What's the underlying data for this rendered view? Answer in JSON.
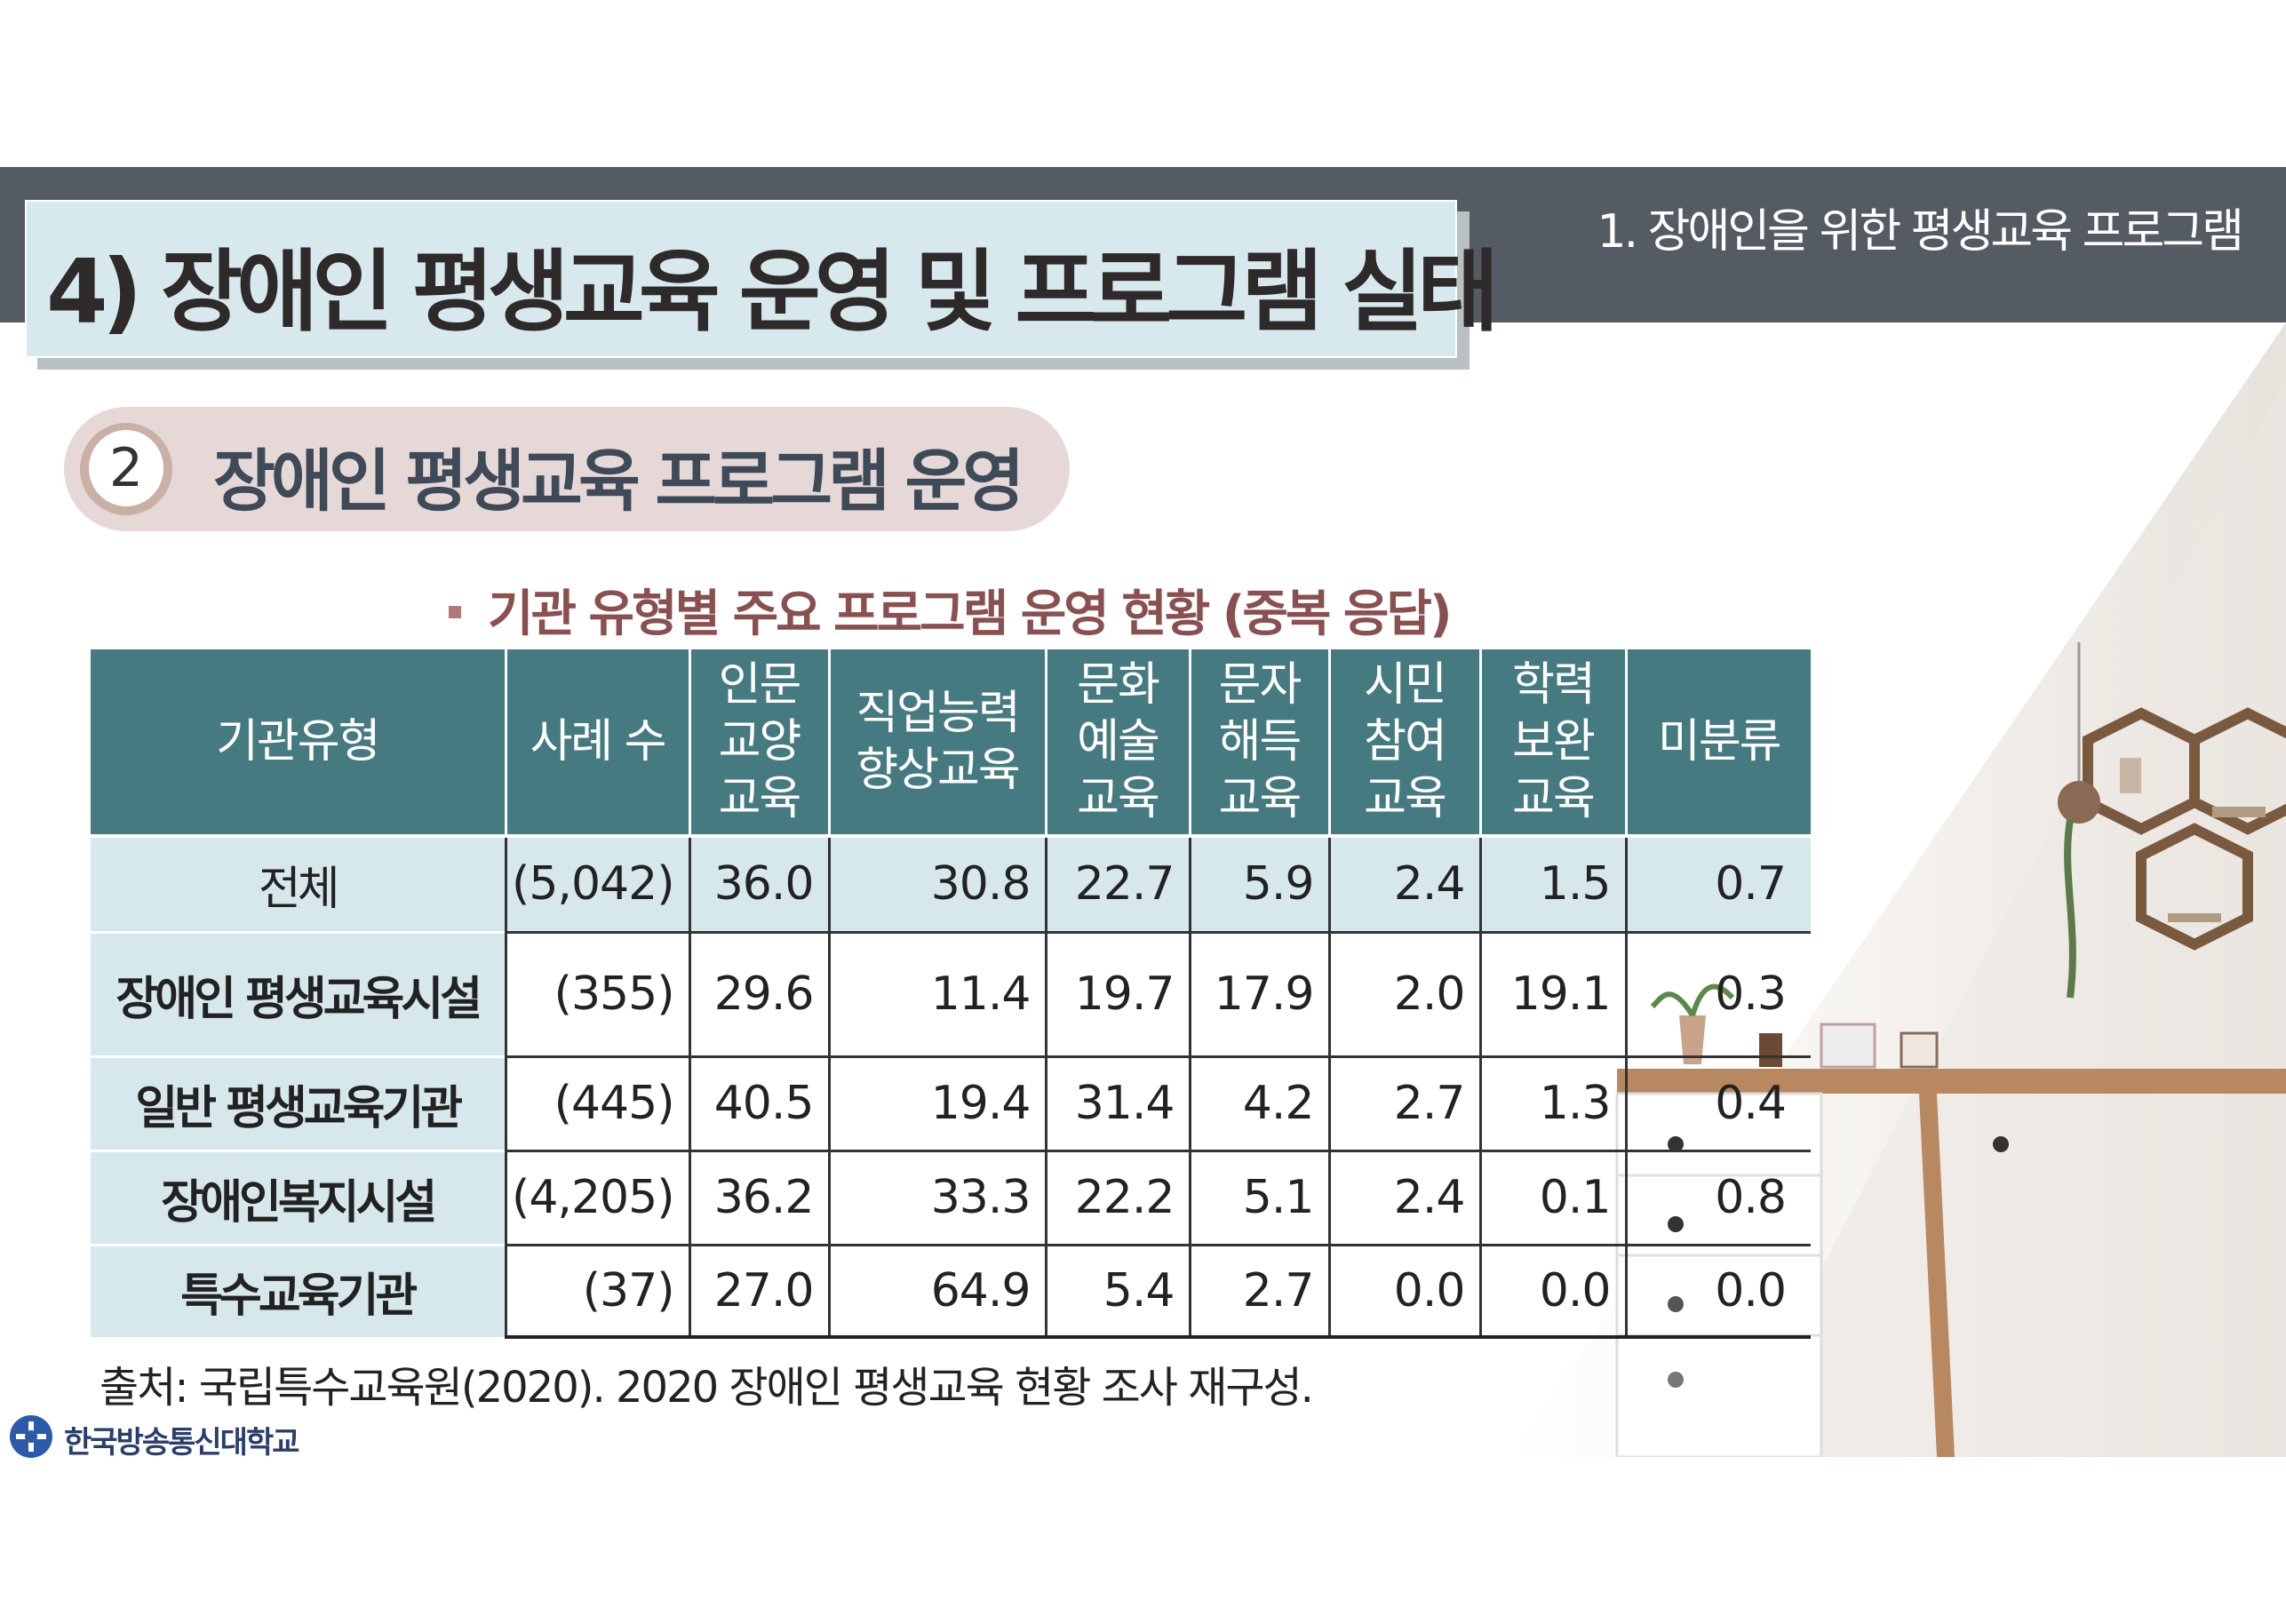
{
  "header": {
    "section_label": "1. 장애인을 위한 평생교육 프로그램",
    "title": "4) 장애인 평생교육 운영 및 프로그램 실태"
  },
  "subheading": {
    "number": "2",
    "text": "장애인 평생교육 프로그램 운영"
  },
  "table_caption": "기관 유형별 주요 프로그램 운영 현황 (중복 응답)",
  "table": {
    "headers": [
      [
        "기관유형"
      ],
      [
        "사례 수"
      ],
      [
        "인문",
        "교양",
        "교육"
      ],
      [
        "직업능력",
        "향상교육"
      ],
      [
        "문화",
        "예술",
        "교육"
      ],
      [
        "문자",
        "해득",
        "교육"
      ],
      [
        "시민",
        "참여",
        "교육"
      ],
      [
        "학력",
        "보완",
        "교육"
      ],
      [
        "미분류"
      ]
    ],
    "rows": [
      [
        "전체",
        "(5,042)",
        "36.0",
        "30.8",
        "22.7",
        "5.9",
        "2.4",
        "1.5",
        "0.7"
      ],
      [
        "장애인 평생교육시설",
        "(355)",
        "29.6",
        "11.4",
        "19.7",
        "17.9",
        "2.0",
        "19.1",
        "0.3"
      ],
      [
        "일반 평생교육기관",
        "(445)",
        "40.5",
        "19.4",
        "31.4",
        "4.2",
        "2.7",
        "1.3",
        "0.4"
      ],
      [
        "장애인복지시설",
        "(4,205)",
        "36.2",
        "33.3",
        "22.2",
        "5.1",
        "2.4",
        "0.1",
        "0.8"
      ],
      [
        "특수교육기관",
        "(37)",
        "27.0",
        "64.9",
        "5.4",
        "2.7",
        "0.0",
        "0.0",
        "0.0"
      ]
    ]
  },
  "source": "출처: 국립특수교육원(2020). 2020 장애인 평생교육 현황 조사 재구성.",
  "footer": {
    "logo_text": "한국방송통신대학교"
  },
  "colors": {
    "header_bar": "#555b62",
    "title_box": "#d8e9ee",
    "table_header": "#447a80",
    "row_header": "#d7e8ed",
    "sub_pill": "#e7d8d8",
    "caption": "#8a4f4f"
  }
}
